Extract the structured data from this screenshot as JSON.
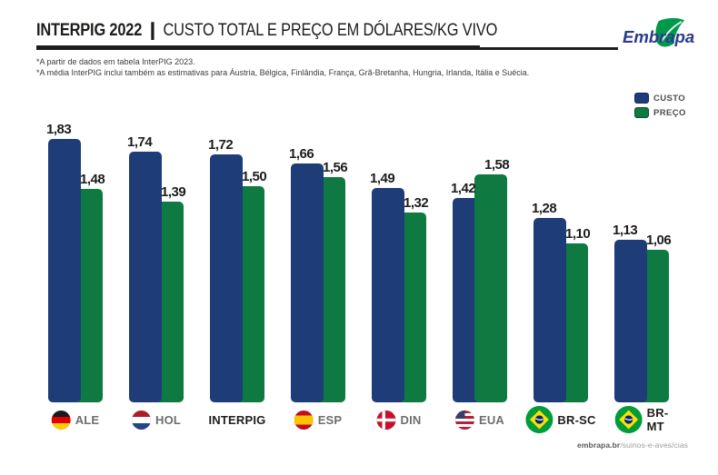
{
  "header": {
    "title_bold": "INTERPIG 2022",
    "title_separator": "|",
    "title_rest": "CUSTO TOTAL E PREÇO EM DÓLARES/KG VIVO",
    "logo_text": "Embrapa"
  },
  "footnotes": [
    "*A partir de dados em tabela InterPIG 2023.",
    "*A média InterPIG inclui também as estimativas para Áustria, Bélgica, Finlândia, França, Grã-Bretanha, Hungria, Irlanda, Itália e Suécia."
  ],
  "legend": [
    {
      "label": "CUSTO",
      "color": "#1e3c78"
    },
    {
      "label": "PREÇO",
      "color": "#0e7a42"
    }
  ],
  "chart_data": {
    "type": "bar",
    "title": "INTERPIG 2022 | CUSTO TOTAL E PREÇO EM DÓLARES/KG VIVO",
    "categories": [
      "ALE",
      "HOL",
      "INTERPIG",
      "ESP",
      "DIN",
      "EUA",
      "BR-SC",
      "BR-MT"
    ],
    "series": [
      {
        "name": "CUSTO",
        "color": "#1e3c78",
        "values": [
          1.83,
          1.74,
          1.72,
          1.66,
          1.49,
          1.42,
          1.28,
          1.13
        ],
        "labels": [
          "1,83",
          "1,74",
          "1,72",
          "1,66",
          "1,49",
          "1,42",
          "1,28",
          "1,13"
        ]
      },
      {
        "name": "PREÇO",
        "color": "#0e7a42",
        "values": [
          1.48,
          1.39,
          1.5,
          1.56,
          1.32,
          1.58,
          1.1,
          1.06
        ],
        "labels": [
          "1,48",
          "1,39",
          "1,50",
          "1,56",
          "1,32",
          "1,58",
          "1,10",
          "1,06"
        ]
      }
    ],
    "flags": [
      "germany",
      "netherlands",
      null,
      "spain",
      "denmark",
      "usa",
      "brazil",
      "brazil"
    ],
    "emphasis": [
      false,
      false,
      true,
      false,
      false,
      false,
      true,
      true
    ],
    "ylim": [
      0,
      2
    ],
    "grid": false,
    "legend_position": "top-right",
    "value_format": "comma-decimal"
  },
  "footer": {
    "bold": "embrapa.br",
    "rest": "/suinos-e-aves/cias"
  }
}
